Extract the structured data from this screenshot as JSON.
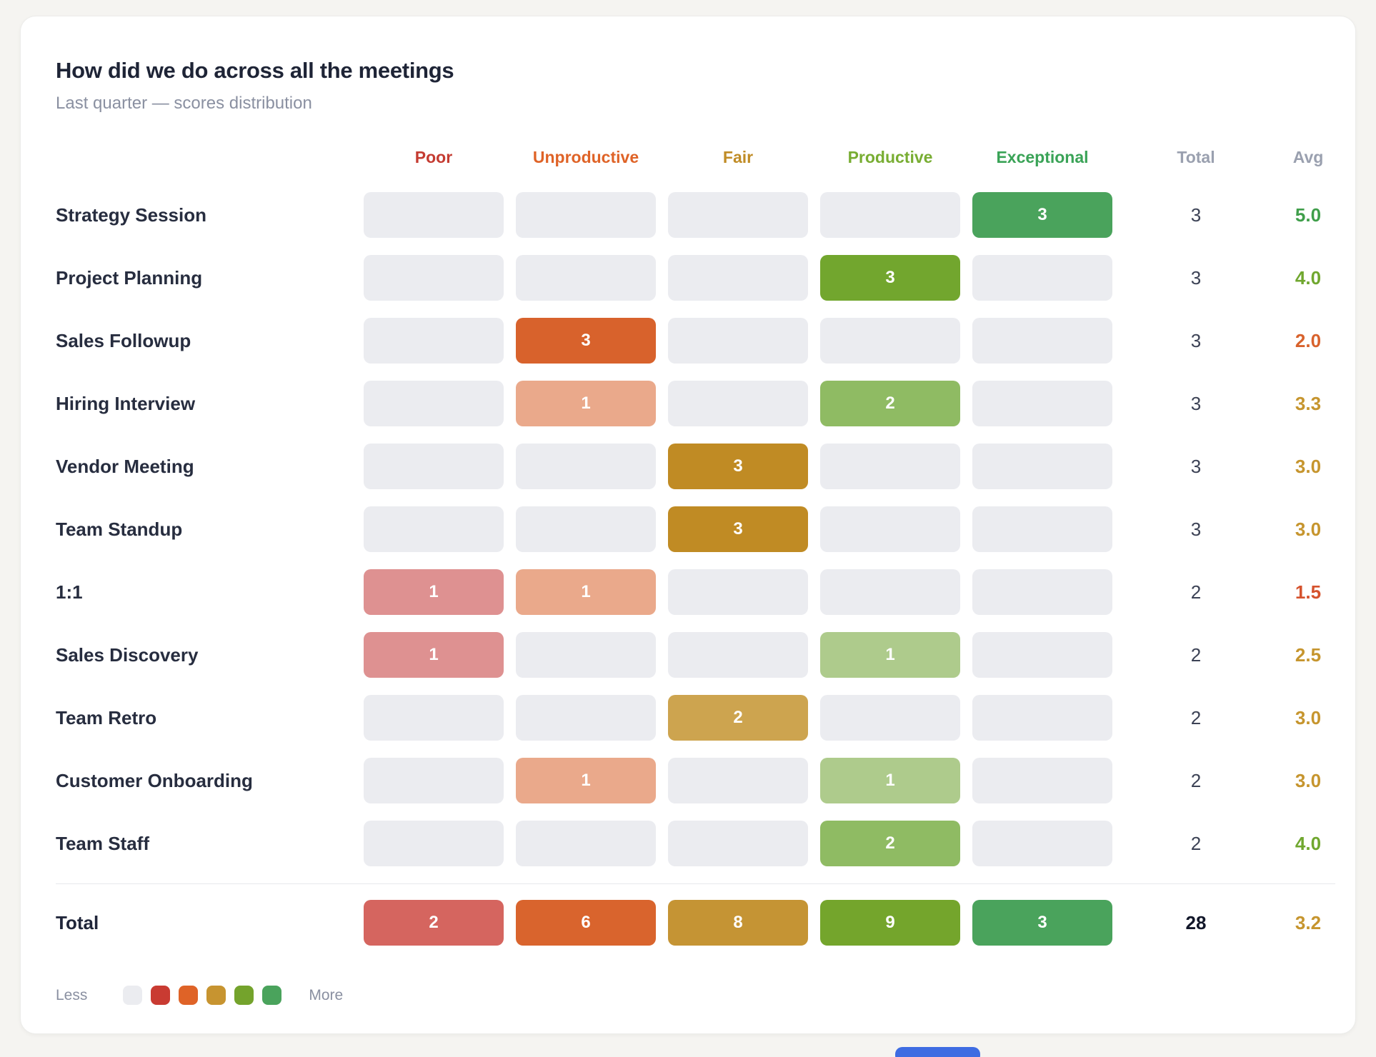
{
  "card": {
    "title": "How did we do across all the meetings",
    "subtitle": "Last quarter — scores distribution"
  },
  "table": {
    "columns": [
      {
        "label": "Poor",
        "color": "#c43b31"
      },
      {
        "label": "Unproductive",
        "color": "#df6327"
      },
      {
        "label": "Fair",
        "color": "#c08c26"
      },
      {
        "label": "Productive",
        "color": "#78ad32"
      },
      {
        "label": "Exceptional",
        "color": "#3aa357"
      },
      {
        "label": "Total",
        "color": "#9aa0af"
      },
      {
        "label": "Avg",
        "color": "#9aa0af"
      }
    ],
    "empty_cell_color": "#ebecf0",
    "rows": [
      {
        "label": "Strategy Session",
        "cells": [
          {
            "value": "",
            "color": ""
          },
          {
            "value": "",
            "color": ""
          },
          {
            "value": "",
            "color": ""
          },
          {
            "value": "",
            "color": ""
          },
          {
            "value": "3",
            "color": "#4aa35c"
          }
        ],
        "total": "3",
        "avg": "5.0",
        "avg_color": "#3f9e4a"
      },
      {
        "label": "Project Planning",
        "cells": [
          {
            "value": "",
            "color": ""
          },
          {
            "value": "",
            "color": ""
          },
          {
            "value": "",
            "color": ""
          },
          {
            "value": "3",
            "color": "#72a62e"
          },
          {
            "value": "",
            "color": ""
          }
        ],
        "total": "3",
        "avg": "4.0",
        "avg_color": "#70a72f"
      },
      {
        "label": "Sales Followup",
        "cells": [
          {
            "value": "",
            "color": ""
          },
          {
            "value": "3",
            "color": "#d8622c"
          },
          {
            "value": "",
            "color": ""
          },
          {
            "value": "",
            "color": ""
          },
          {
            "value": "",
            "color": ""
          }
        ],
        "total": "3",
        "avg": "2.0",
        "avg_color": "#d8622c"
      },
      {
        "label": "Hiring Interview",
        "cells": [
          {
            "value": "",
            "color": ""
          },
          {
            "value": "1",
            "color": "#eaa98b"
          },
          {
            "value": "",
            "color": ""
          },
          {
            "value": "2",
            "color": "#8fbb63"
          },
          {
            "value": "",
            "color": ""
          }
        ],
        "total": "3",
        "avg": "3.3",
        "avg_color": "#c6952e"
      },
      {
        "label": "Vendor Meeting",
        "cells": [
          {
            "value": "",
            "color": ""
          },
          {
            "value": "",
            "color": ""
          },
          {
            "value": "3",
            "color": "#c08b24"
          },
          {
            "value": "",
            "color": ""
          },
          {
            "value": "",
            "color": ""
          }
        ],
        "total": "3",
        "avg": "3.0",
        "avg_color": "#c6952e"
      },
      {
        "label": "Team Standup",
        "cells": [
          {
            "value": "",
            "color": ""
          },
          {
            "value": "",
            "color": ""
          },
          {
            "value": "3",
            "color": "#c08b24"
          },
          {
            "value": "",
            "color": ""
          },
          {
            "value": "",
            "color": ""
          }
        ],
        "total": "3",
        "avg": "3.0",
        "avg_color": "#c6952e"
      },
      {
        "label": "1:1",
        "cells": [
          {
            "value": "1",
            "color": "#de9191"
          },
          {
            "value": "1",
            "color": "#eaa98b"
          },
          {
            "value": "",
            "color": ""
          },
          {
            "value": "",
            "color": ""
          },
          {
            "value": "",
            "color": ""
          }
        ],
        "total": "2",
        "avg": "1.5",
        "avg_color": "#d5522d"
      },
      {
        "label": "Sales Discovery",
        "cells": [
          {
            "value": "1",
            "color": "#de9191"
          },
          {
            "value": "",
            "color": ""
          },
          {
            "value": "",
            "color": ""
          },
          {
            "value": "1",
            "color": "#aecb8c"
          },
          {
            "value": "",
            "color": ""
          }
        ],
        "total": "2",
        "avg": "2.5",
        "avg_color": "#c6952e"
      },
      {
        "label": "Team Retro",
        "cells": [
          {
            "value": "",
            "color": ""
          },
          {
            "value": "",
            "color": ""
          },
          {
            "value": "2",
            "color": "#cda44f"
          },
          {
            "value": "",
            "color": ""
          },
          {
            "value": "",
            "color": ""
          }
        ],
        "total": "2",
        "avg": "3.0",
        "avg_color": "#c6952e"
      },
      {
        "label": "Customer Onboarding",
        "cells": [
          {
            "value": "",
            "color": ""
          },
          {
            "value": "1",
            "color": "#eaa98b"
          },
          {
            "value": "",
            "color": ""
          },
          {
            "value": "1",
            "color": "#aecb8c"
          },
          {
            "value": "",
            "color": ""
          }
        ],
        "total": "2",
        "avg": "3.0",
        "avg_color": "#c6952e"
      },
      {
        "label": "Team Staff",
        "cells": [
          {
            "value": "",
            "color": ""
          },
          {
            "value": "",
            "color": ""
          },
          {
            "value": "",
            "color": ""
          },
          {
            "value": "2",
            "color": "#8fbb63"
          },
          {
            "value": "",
            "color": ""
          }
        ],
        "total": "2",
        "avg": "4.0",
        "avg_color": "#70a72f"
      }
    ],
    "total_row": {
      "label": "Total",
      "cells": [
        {
          "value": "2",
          "color": "#d5655f"
        },
        {
          "value": "6",
          "color": "#d9642d"
        },
        {
          "value": "8",
          "color": "#c59434"
        },
        {
          "value": "9",
          "color": "#74a52c"
        },
        {
          "value": "3",
          "color": "#4aa35c"
        }
      ],
      "total": "28",
      "avg": "3.2",
      "avg_color": "#c6952e"
    }
  },
  "legend": {
    "less": "Less",
    "more": "More",
    "swatches": [
      "#ebecf0",
      "#c93b32",
      "#df6327",
      "#c79430",
      "#74a32c",
      "#4aa35c"
    ]
  },
  "accents": {
    "scrollbar_color": "#3e6ce2"
  },
  "chart_data": {
    "type": "heatmap",
    "title": "How did we do across all the meetings",
    "subtitle": "Last quarter — scores distribution",
    "x_categories": [
      "Poor",
      "Unproductive",
      "Fair",
      "Productive",
      "Exceptional"
    ],
    "y_categories": [
      "Strategy Session",
      "Project Planning",
      "Sales Followup",
      "Hiring Interview",
      "Vendor Meeting",
      "Team Standup",
      "1:1",
      "Sales Discovery",
      "Team Retro",
      "Customer Onboarding",
      "Team Staff"
    ],
    "values": [
      [
        0,
        0,
        0,
        0,
        3
      ],
      [
        0,
        0,
        0,
        3,
        0
      ],
      [
        0,
        3,
        0,
        0,
        0
      ],
      [
        0,
        1,
        0,
        2,
        0
      ],
      [
        0,
        0,
        3,
        0,
        0
      ],
      [
        0,
        0,
        3,
        0,
        0
      ],
      [
        1,
        1,
        0,
        0,
        0
      ],
      [
        1,
        0,
        0,
        1,
        0
      ],
      [
        0,
        0,
        2,
        0,
        0
      ],
      [
        0,
        1,
        0,
        1,
        0
      ],
      [
        0,
        0,
        0,
        2,
        0
      ]
    ],
    "row_totals": [
      3,
      3,
      3,
      3,
      3,
      3,
      2,
      2,
      2,
      2,
      2
    ],
    "row_avgs": [
      5.0,
      4.0,
      2.0,
      3.3,
      3.0,
      3.0,
      1.5,
      2.5,
      3.0,
      3.0,
      4.0
    ],
    "column_totals": [
      2,
      6,
      8,
      9,
      3
    ],
    "grand_total": 28,
    "overall_avg": 3.2,
    "legend_position": "bottom-left",
    "grid": false
  }
}
